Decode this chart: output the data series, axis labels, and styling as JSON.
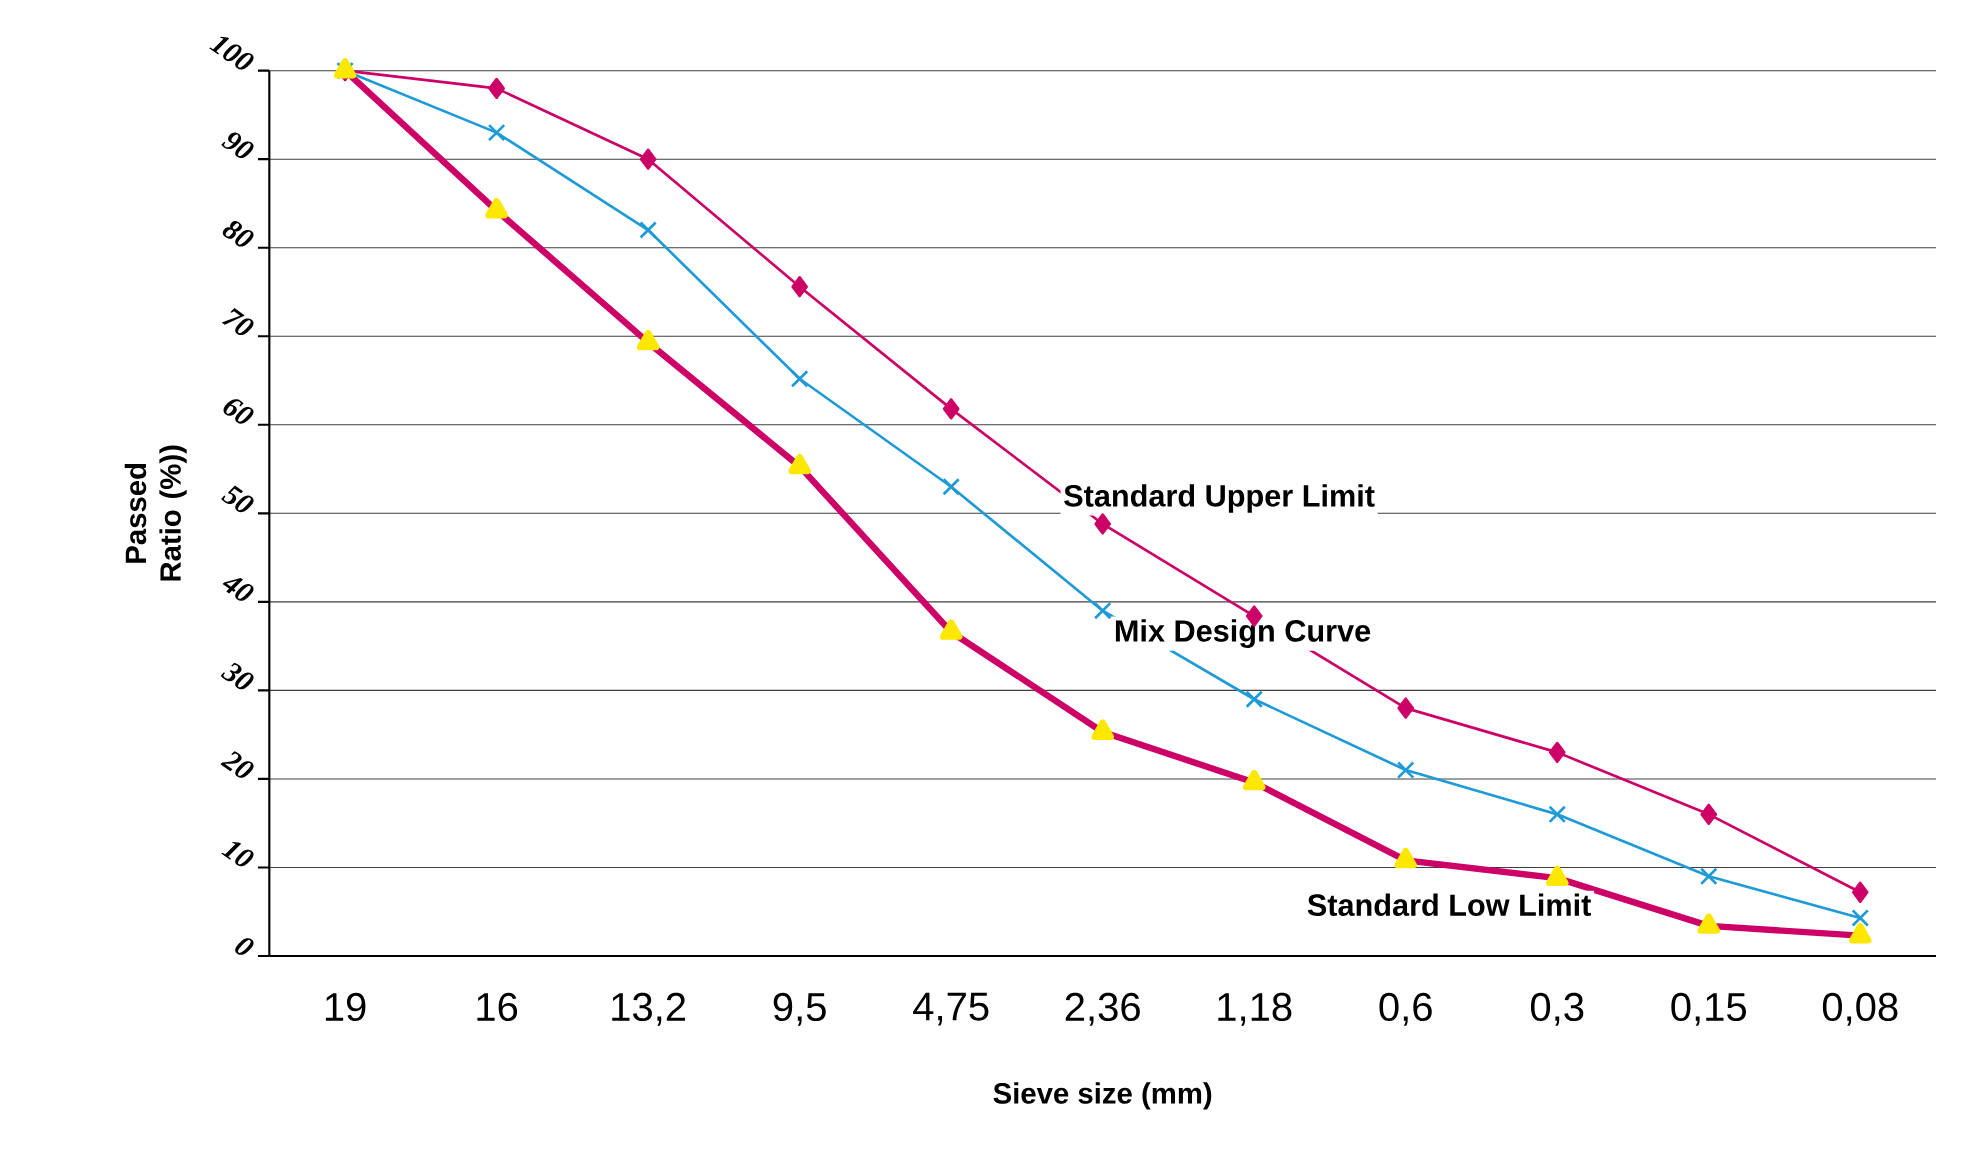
{
  "chart_data": {
    "type": "line",
    "xlabel": "Sieve size (mm)",
    "ylabel": "Passed Ratio (%))",
    "categories": [
      "19",
      "16",
      "13,2",
      "9,5",
      "4,75",
      "2,36",
      "1,18",
      "0,6",
      "0,3",
      "0,15",
      "0,08"
    ],
    "ylim": [
      0,
      100
    ],
    "yticks": [
      0,
      10,
      20,
      30,
      40,
      50,
      60,
      70,
      80,
      90,
      100
    ],
    "grid": "y",
    "series": [
      {
        "name": "Standard Upper Limit",
        "color": "#cc0066",
        "marker": "diamond",
        "values": [
          100,
          98,
          90,
          75.6,
          61.8,
          48.8,
          38.4,
          28,
          23,
          16,
          7.2
        ]
      },
      {
        "name": "Mix Design Curve",
        "color": "#1e9bd7",
        "marker": "cross",
        "values": [
          100,
          93,
          82,
          65.2,
          53,
          39,
          29,
          21,
          16,
          9,
          4.3
        ]
      },
      {
        "name": "Standard Low Limit",
        "color": "#cc0066",
        "marker": "triangle",
        "values": [
          100,
          84.2,
          69.3,
          55.3,
          36.6,
          25.3,
          19.6,
          10.8,
          8.8,
          3.4,
          2.3
        ]
      }
    ]
  }
}
